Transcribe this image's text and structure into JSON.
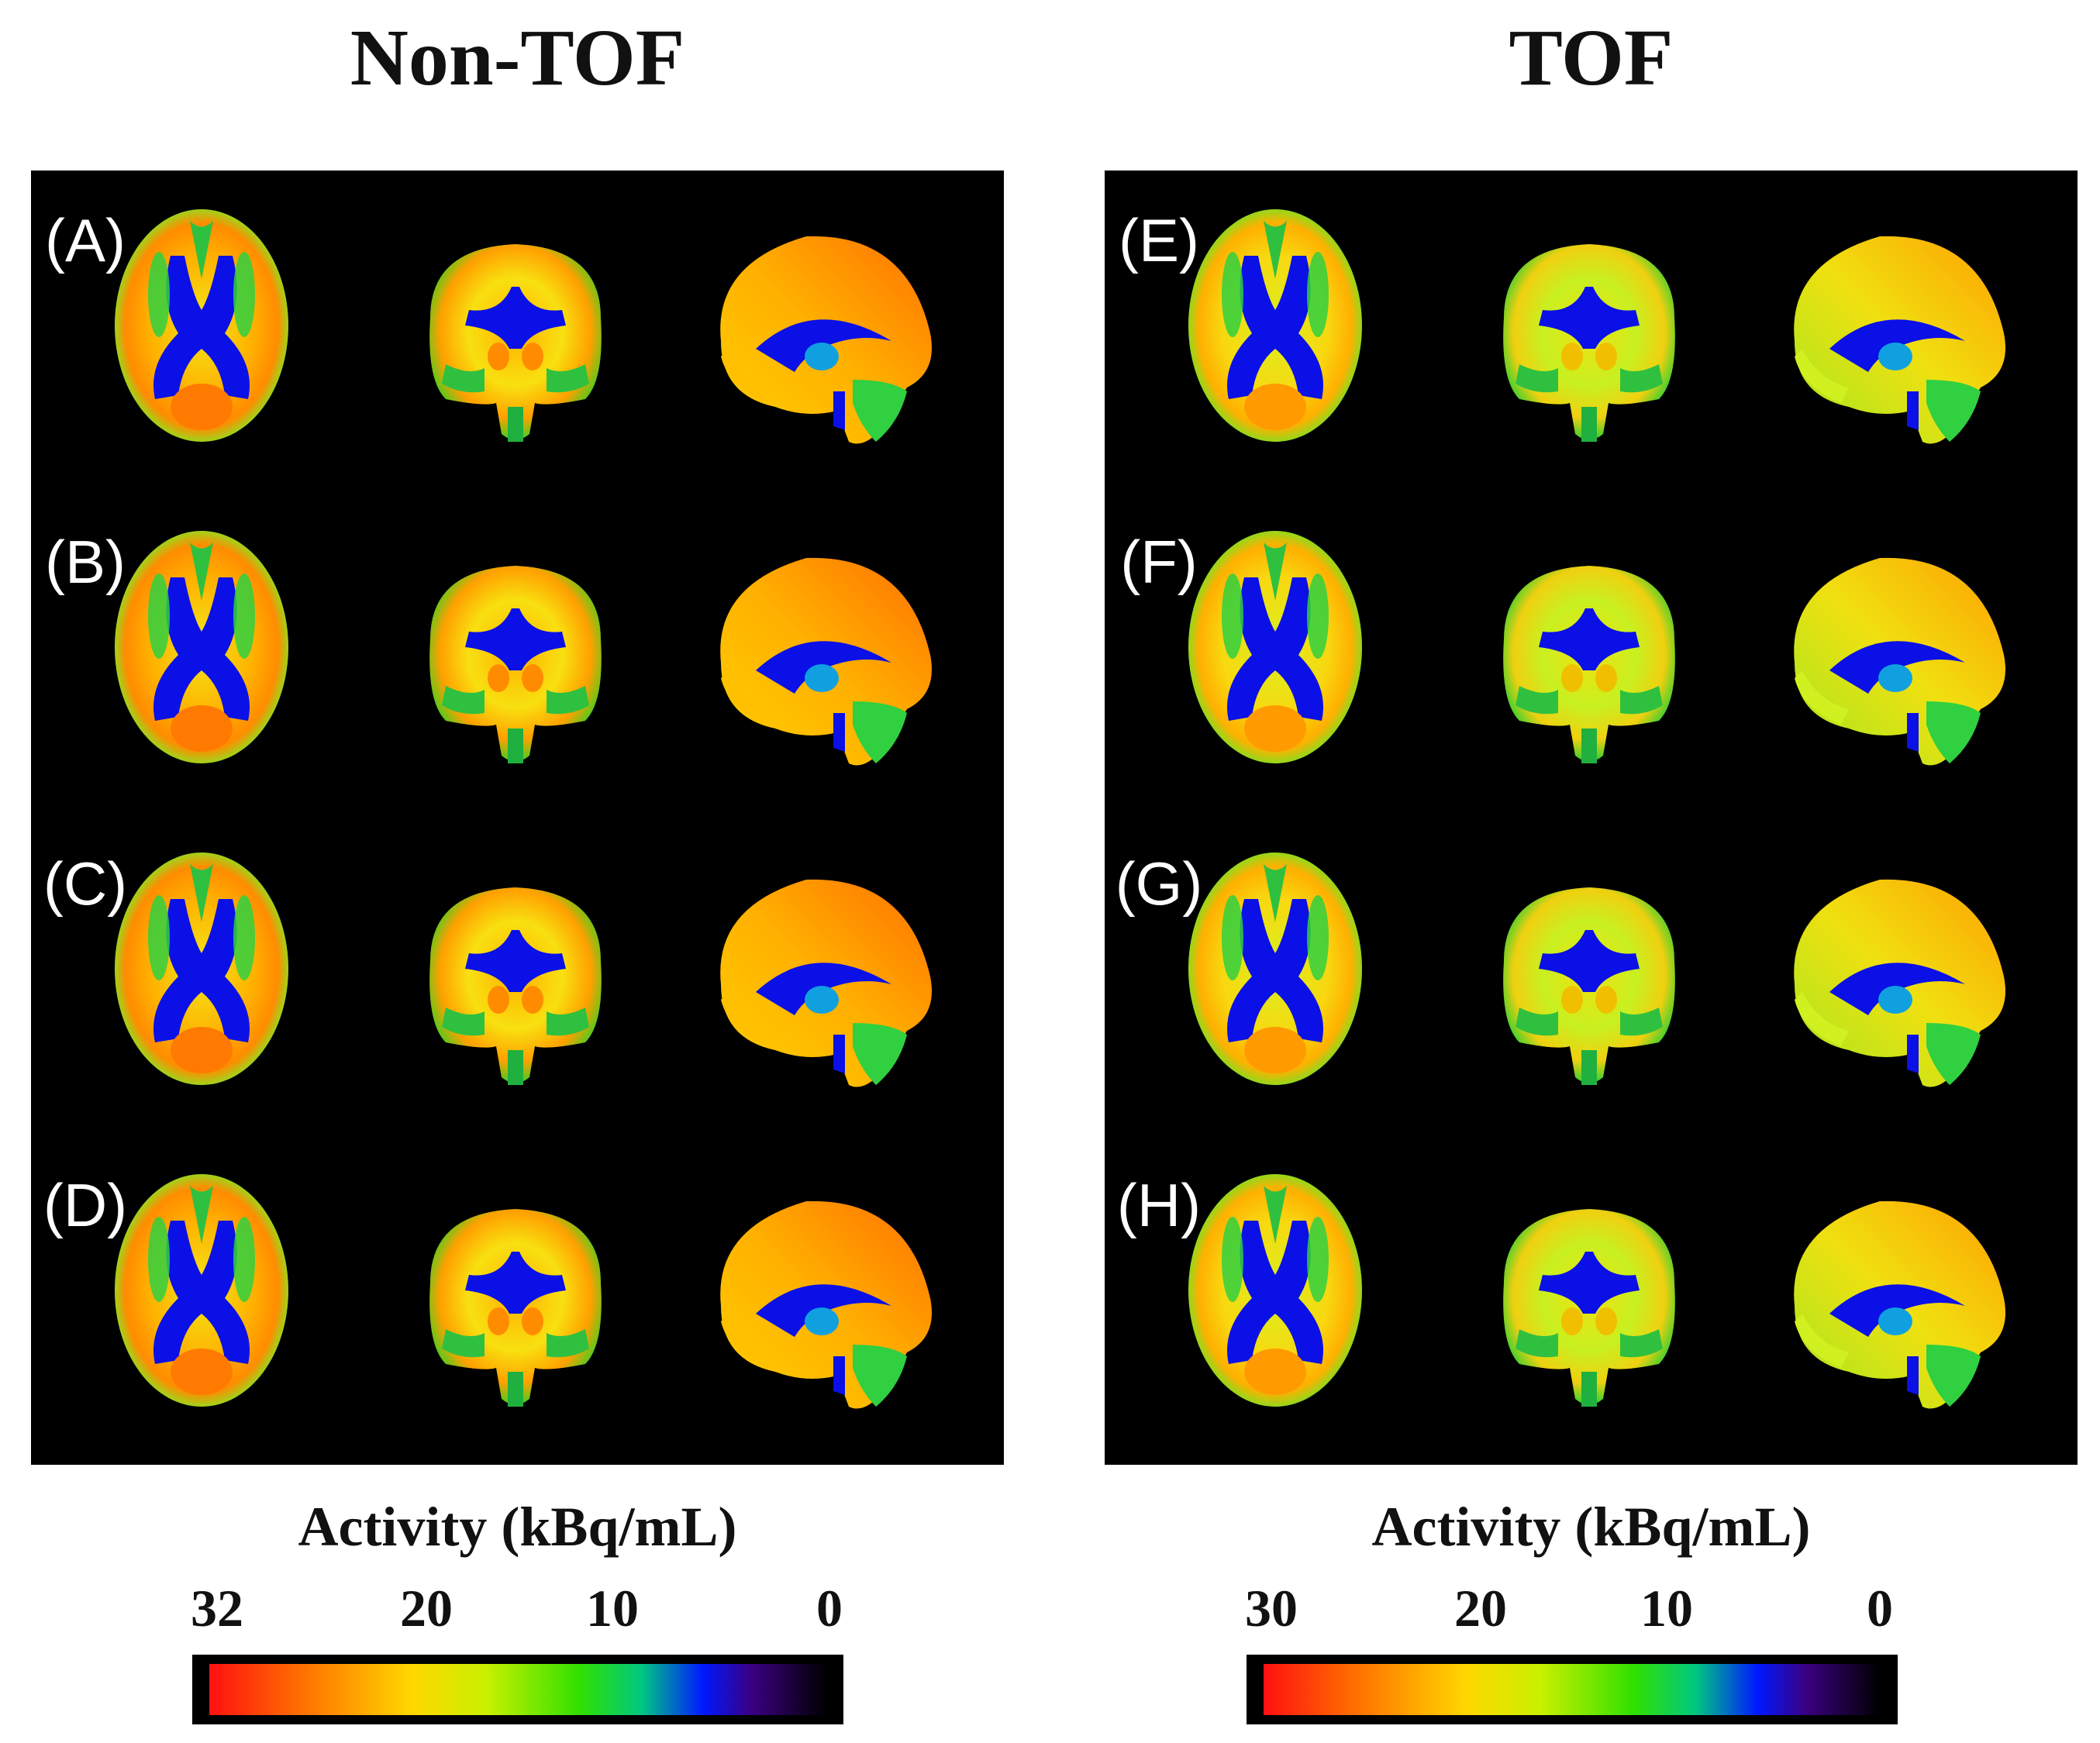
{
  "titles": {
    "left": "Non-TOF",
    "right": "TOF"
  },
  "panels": {
    "left": {
      "labels": [
        "(A)",
        "(B)",
        "(C)",
        "(D)"
      ]
    },
    "right": {
      "labels": [
        "(E)",
        "(F)",
        "(G)",
        "(H)"
      ]
    }
  },
  "views": [
    "axial",
    "coronal",
    "sagittal"
  ],
  "colorbars": {
    "left": {
      "title": "Activity (kBq/mL)",
      "ticks": [
        "32",
        "20",
        "10",
        "0"
      ]
    },
    "right": {
      "title": "Activity (kBq/mL)",
      "ticks": [
        "30",
        "20",
        "10",
        "0"
      ]
    }
  },
  "colors": {
    "background": "#000000",
    "ventricle": "#0a10e6",
    "low": "#20d020",
    "mid": "#f5ee10",
    "high": "#ff7a00",
    "peak": "#ff3a00"
  }
}
